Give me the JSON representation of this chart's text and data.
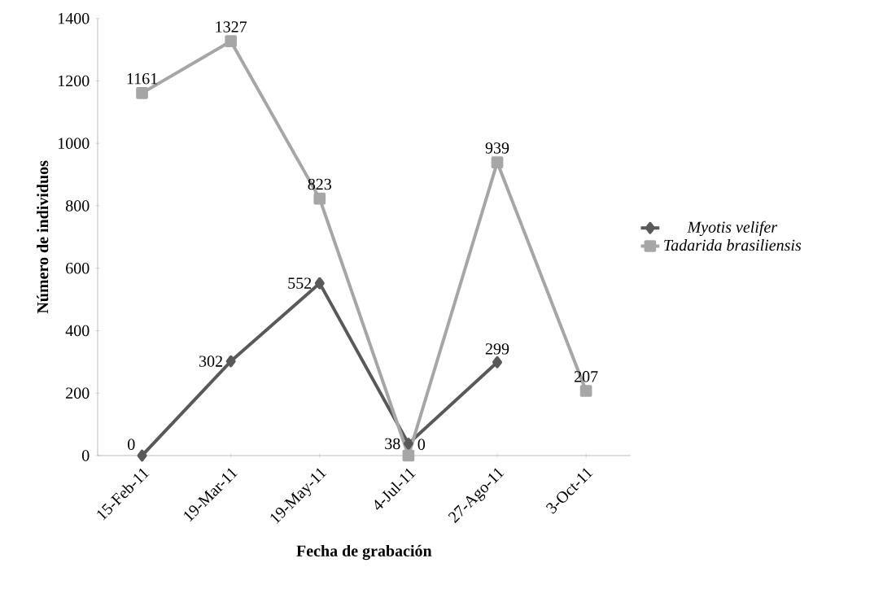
{
  "chart_data": {
    "type": "line",
    "xlabel": "Fecha de grabación",
    "ylabel": "Número de individuos",
    "categories": [
      "15-Feb-11",
      "19-Mar-11",
      "19-May-11",
      "4-Jul-11",
      "27-Ago-11",
      "3-Oct-11"
    ],
    "series": [
      {
        "name": "*Myotis velifer*",
        "color": "#595959",
        "marker": "diamond",
        "values": [
          0,
          302,
          552,
          38,
          299,
          null
        ]
      },
      {
        "name": "*Tadarida brasiliensis*",
        "color": "#a6a6a6",
        "marker": "square",
        "values": [
          1161,
          1327,
          823,
          0,
          939,
          207
        ]
      }
    ],
    "ylim": [
      0,
      1400
    ],
    "yticks": [
      0,
      200,
      400,
      600,
      800,
      1000,
      1200,
      1400
    ],
    "data_labels": true,
    "legend": "right",
    "grid": false
  }
}
